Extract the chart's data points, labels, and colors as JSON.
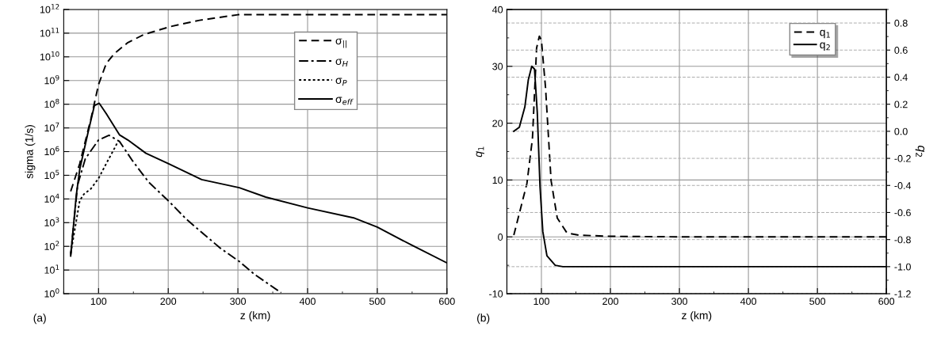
{
  "chart_data": [
    {
      "type": "line",
      "xlabel": "z (km)",
      "ylabel": "sigma (1/s)",
      "log": "y",
      "xlim": [
        50,
        600
      ],
      "xticks": [
        100,
        200,
        300,
        400,
        500,
        600
      ],
      "ylim": [
        1,
        1000000000000.0
      ],
      "yticks": [
        {
          "value": 1,
          "label": "10$^{0}$"
        },
        {
          "value": 10,
          "label": "10$^{1}$"
        },
        {
          "value": 100,
          "label": "10$^{2}$"
        },
        {
          "value": 1000,
          "label": "10$^{3}$"
        },
        {
          "value": 10000.0,
          "label": "10$^{4}$"
        },
        {
          "value": 100000.0,
          "label": "10$^{5}$"
        },
        {
          "value": 1000000.0,
          "label": "10$^{6}$"
        },
        {
          "value": 10000000.0,
          "label": "10$^{7}$"
        },
        {
          "value": 100000000.0,
          "label": "10$^{8}$"
        },
        {
          "value": 1000000000.0,
          "label": "10$^{9}$"
        },
        {
          "value": 10000000000.0,
          "label": "10$^{10}$"
        },
        {
          "value": 100000000000.0,
          "label": "10$^{11}$"
        },
        {
          "value": 1000000000000.0,
          "label": "10$^{12}$"
        }
      ],
      "grid": true,
      "legend": "top right",
      "annotations": [
        "(a)"
      ],
      "series": [
        {
          "name": "σ$_{||}$",
          "color": "#000000",
          "line_style": "dashed",
          "x": [
            60,
            73,
            89,
            100,
            111,
            123,
            142,
            165,
            203,
            245,
            300,
            350,
            400,
            500,
            600
          ],
          "values": [
            21000.0,
            310000.0,
            24000000.0,
            680000000.0,
            5200000000.0,
            14000000000.0,
            40000000000.0,
            87000000000.0,
            190000000000.0,
            350000000000.0,
            600000000000.0,
            600000000000.0,
            600000000000.0,
            600000000000.0,
            600000000000.0
          ]
        },
        {
          "name": "σ$_{H}$",
          "color": "#000000",
          "line_style": "dashdot",
          "x": [
            60,
            70,
            81,
            100,
            115,
            130,
            149,
            172,
            200,
            226,
            248,
            275,
            302,
            324,
            362
          ],
          "values": [
            44,
            40000.0,
            500000.0,
            3100000.0,
            4900000.0,
            2700000.0,
            400000.0,
            51000.0,
            8500.0,
            1400.0,
            390,
            83,
            23,
            6.5,
            1.1
          ]
        },
        {
          "name": "σ$_{P}$",
          "color": "#000000",
          "line_style": "dotted",
          "x": [
            60,
            73,
            79,
            89,
            100,
            111,
            123,
            128
          ],
          "values": [
            50,
            8500.0,
            16000.0,
            27000.0,
            74000.0,
            310000.0,
            1400000.0,
            2700000.0
          ]
        },
        {
          "name": "σ$_{eff}$",
          "color": "#000000",
          "line_style": "solid",
          "x": [
            60,
            68,
            73,
            85,
            94,
            101,
            111,
            130,
            142,
            168,
            200,
            248,
            302,
            340,
            400,
            466,
            500,
            550,
            600
          ],
          "values": [
            39,
            14000.0,
            180000.0,
            6600000.0,
            87000000.0,
            110000000.0,
            40000000.0,
            5100000.0,
            3100000.0,
            850000.0,
            310000.0,
            66000.0,
            30000.0,
            12000.0,
            4200.0,
            1600.0,
            650,
            110,
            20
          ]
        }
      ]
    },
    {
      "type": "line",
      "xlabel": "z (km)",
      "ylabel": "q$_{1}$",
      "y2label": "q$_{2}$",
      "xlim": [
        50,
        600
      ],
      "xticks": [
        100,
        200,
        300,
        400,
        500,
        600
      ],
      "ylim": [
        -10,
        40
      ],
      "yticks": [
        -10,
        0,
        10,
        20,
        30,
        40
      ],
      "y2lim": [
        -1.2,
        0.9
      ],
      "y2ticks": [
        -1.2,
        {
          "value": -1,
          "label": "-1.0"
        },
        -0.8,
        -0.6,
        -0.4,
        -0.2,
        {
          "value": 0,
          "label": "0.0"
        },
        0.2,
        0.4,
        0.6,
        0.8
      ],
      "grid": true,
      "legend": "top right",
      "annotations": [
        "(b)"
      ],
      "series": [
        {
          "name": "q$_{1}$",
          "color": "#000000",
          "line_style": "dashed",
          "axis": "y",
          "x": [
            60,
            79,
            87,
            93,
            97,
            100,
            106,
            114,
            123,
            137,
            154,
            200,
            300,
            400,
            500,
            600
          ],
          "values": [
            0.3,
            9.4,
            17.3,
            33.2,
            35.3,
            34.6,
            26.2,
            9.9,
            3.3,
            0.7,
            0.3,
            0.1,
            0,
            0,
            0,
            0
          ]
        },
        {
          "name": "q$_{2}$",
          "color": "#000000",
          "line_style": "solid",
          "axis": "y2",
          "x": [
            60,
            68,
            76,
            81,
            86,
            90,
            94,
            98,
            102,
            108,
            120,
            131,
            200,
            300,
            400,
            500,
            600
          ],
          "values": [
            0.0,
            0.03,
            0.18,
            0.38,
            0.48,
            0.46,
            0.14,
            -0.41,
            -0.74,
            -0.92,
            -0.99,
            -1.0,
            -1.0,
            -1.0,
            -1.0,
            -1.0,
            -1.0
          ]
        }
      ]
    }
  ]
}
